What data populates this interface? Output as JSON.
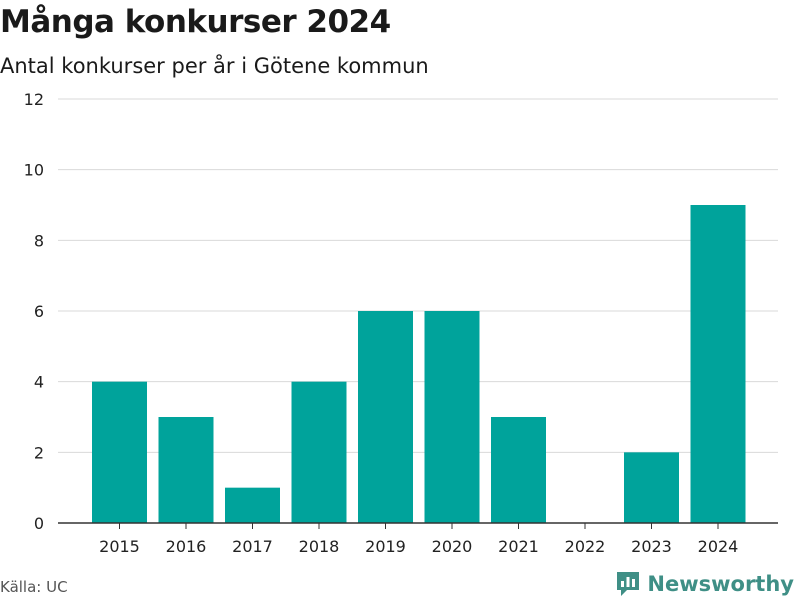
{
  "title": "Många konkurser 2024",
  "subtitle": "Antal konkurser per år i Götene kommun",
  "source": "Källa: UC",
  "brand": {
    "name": "Newsworthy",
    "logo_icon": "newsworthy-logo-icon",
    "color": "#3f8f86"
  },
  "colors": {
    "bar": "#00a39b",
    "grid": "#d9d9d9",
    "axis": "#333333"
  },
  "chart_data": {
    "type": "bar",
    "title": "Många konkurser 2024",
    "subtitle": "Antal konkurser per år i Götene kommun",
    "xlabel": "",
    "ylabel": "",
    "categories": [
      "2015",
      "2016",
      "2017",
      "2018",
      "2019",
      "2020",
      "2021",
      "2022",
      "2023",
      "2024"
    ],
    "values": [
      4,
      3,
      1,
      4,
      6,
      6,
      3,
      0,
      2,
      9
    ],
    "ylim": [
      0,
      12
    ],
    "yticks": [
      0,
      2,
      4,
      6,
      8,
      10,
      12
    ],
    "grid": true,
    "legend": "none"
  }
}
